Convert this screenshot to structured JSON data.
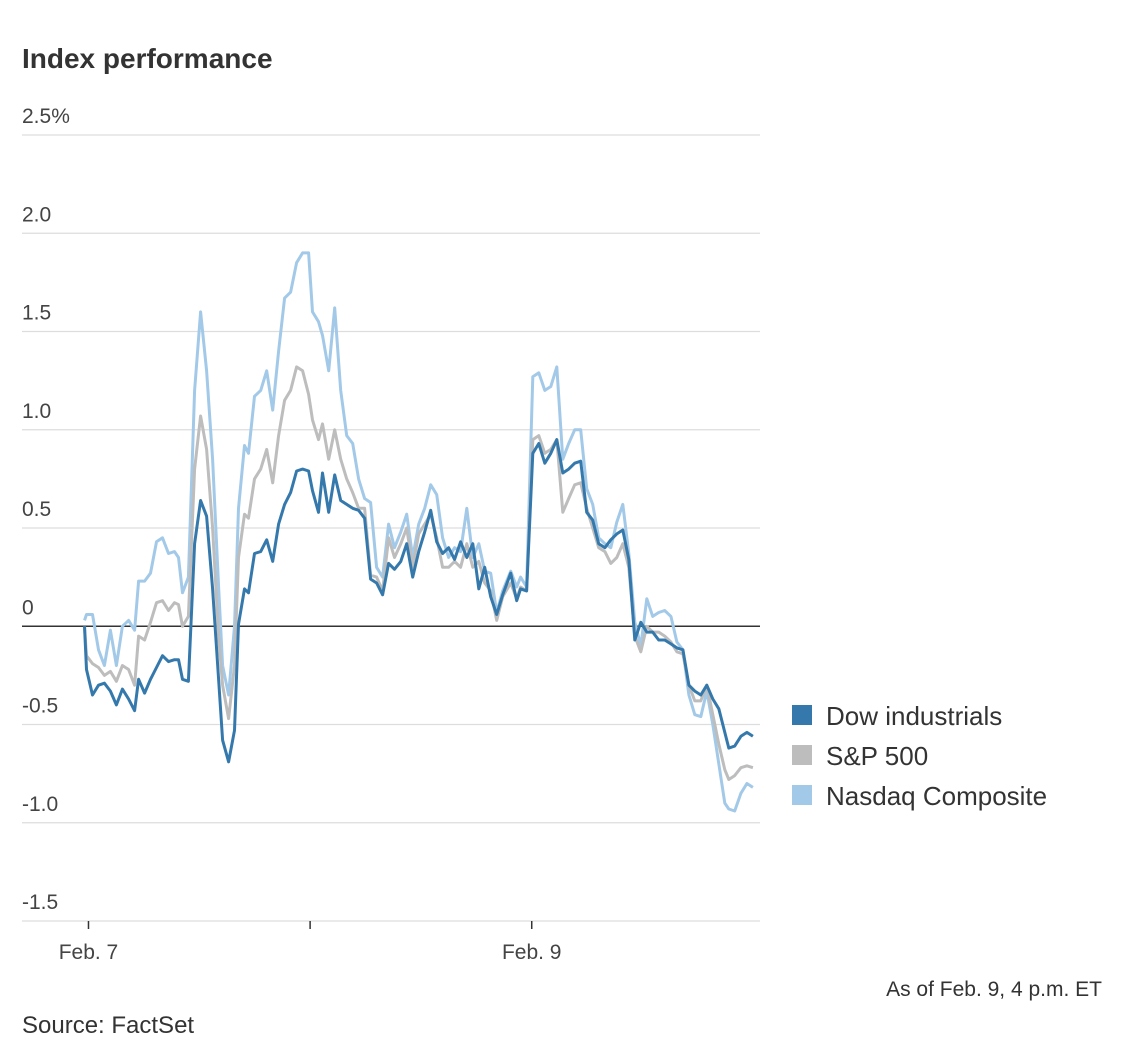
{
  "chart_data": {
    "type": "line",
    "title": "Index performance",
    "note": "As of Feb. 9, 4 p.m. ET",
    "source": "Source: FactSet",
    "x": [
      -0.018,
      -0.009,
      0.018,
      0.045,
      0.072,
      0.099,
      0.126,
      0.153,
      0.181,
      0.208,
      0.226,
      0.253,
      0.28,
      0.307,
      0.334,
      0.361,
      0.388,
      0.406,
      0.424,
      0.451,
      0.479,
      0.506,
      0.533,
      0.56,
      0.587,
      0.605,
      0.632,
      0.659,
      0.677,
      0.704,
      0.722,
      0.749,
      0.777,
      0.804,
      0.831,
      0.858,
      0.885,
      0.912,
      0.939,
      0.966,
      0.993,
      1.011,
      1.038,
      1.056,
      1.084,
      1.111,
      1.138,
      1.165,
      1.192,
      1.219,
      1.246,
      1.273,
      1.3,
      1.327,
      1.354,
      1.381,
      1.409,
      1.436,
      1.463,
      1.49,
      1.517,
      1.544,
      1.571,
      1.598,
      1.625,
      1.652,
      1.679,
      1.707,
      1.734,
      1.761,
      1.788,
      1.815,
      1.842,
      1.869,
      1.905,
      1.932,
      1.95,
      1.977,
      2.005,
      2.032,
      2.059,
      2.086,
      2.113,
      2.14,
      2.167,
      2.194,
      2.221,
      2.248,
      2.275,
      2.302,
      2.33,
      2.357,
      2.384,
      2.411,
      2.438,
      2.465,
      2.492,
      2.519,
      2.546,
      2.573,
      2.6,
      2.628,
      2.655,
      2.682,
      2.709,
      2.736,
      2.763,
      2.79,
      2.817,
      2.844,
      2.871,
      2.889,
      2.916,
      2.944,
      2.971,
      2.998
    ],
    "series": [
      {
        "name": "Dow industrials",
        "color": "#3579ac",
        "values": [
          0,
          -0.22,
          -0.35,
          -0.3,
          -0.29,
          -0.33,
          -0.4,
          -0.32,
          -0.37,
          -0.43,
          -0.27,
          -0.34,
          -0.27,
          -0.21,
          -0.15,
          -0.18,
          -0.17,
          -0.17,
          -0.27,
          -0.28,
          0.42,
          0.64,
          0.56,
          0.19,
          -0.27,
          -0.58,
          -0.69,
          -0.53,
          0.01,
          0.19,
          0.17,
          0.37,
          0.38,
          0.44,
          0.33,
          0.52,
          0.62,
          0.68,
          0.79,
          0.8,
          0.79,
          0.69,
          0.58,
          0.78,
          0.58,
          0.77,
          0.64,
          0.62,
          0.6,
          0.59,
          0.55,
          0.24,
          0.22,
          0.16,
          0.32,
          0.29,
          0.33,
          0.42,
          0.25,
          0.38,
          0.48,
          0.59,
          0.43,
          0.37,
          0.4,
          0.34,
          0.43,
          0.35,
          0.42,
          0.19,
          0.3,
          0.15,
          0.06,
          0.16,
          0.27,
          0.13,
          0.19,
          0.18,
          0.88,
          0.93,
          0.83,
          0.88,
          0.95,
          0.78,
          0.8,
          0.83,
          0.84,
          0.58,
          0.54,
          0.42,
          0.4,
          0.44,
          0.47,
          0.49,
          0.34,
          -0.07,
          0.02,
          -0.03,
          -0.03,
          -0.07,
          -0.07,
          -0.09,
          -0.11,
          -0.12,
          -0.3,
          -0.33,
          -0.35,
          -0.3,
          -0.37,
          -0.42,
          -0.54,
          -0.62,
          -0.61,
          -0.56,
          -0.54,
          -0.56
        ]
      },
      {
        "name": "S&P 500",
        "color": "#bdbdbd",
        "values": [
          0,
          -0.15,
          -0.19,
          -0.21,
          -0.25,
          -0.23,
          -0.28,
          -0.2,
          -0.22,
          -0.3,
          -0.05,
          -0.07,
          0.02,
          0.12,
          0.13,
          0.08,
          0.12,
          0.11,
          0.0,
          0.05,
          0.8,
          1.07,
          0.9,
          0.5,
          -0.05,
          -0.3,
          -0.47,
          -0.2,
          0.35,
          0.57,
          0.55,
          0.75,
          0.8,
          0.9,
          0.73,
          0.97,
          1.15,
          1.2,
          1.32,
          1.3,
          1.18,
          1.05,
          0.95,
          1.03,
          0.85,
          1.0,
          0.85,
          0.75,
          0.68,
          0.6,
          0.6,
          0.26,
          0.25,
          0.18,
          0.45,
          0.35,
          0.42,
          0.5,
          0.3,
          0.47,
          0.52,
          0.57,
          0.45,
          0.3,
          0.3,
          0.33,
          0.3,
          0.42,
          0.3,
          0.33,
          0.22,
          0.18,
          0.03,
          0.15,
          0.22,
          0.14,
          0.2,
          0.18,
          0.95,
          0.97,
          0.88,
          0.9,
          0.95,
          0.58,
          0.65,
          0.72,
          0.73,
          0.6,
          0.5,
          0.4,
          0.38,
          0.32,
          0.35,
          0.42,
          0.3,
          -0.05,
          -0.13,
          0.0,
          -0.03,
          -0.03,
          -0.05,
          -0.08,
          -0.13,
          -0.14,
          -0.3,
          -0.38,
          -0.38,
          -0.3,
          -0.45,
          -0.6,
          -0.73,
          -0.78,
          -0.76,
          -0.72,
          -0.71,
          -0.72
        ]
      },
      {
        "name": "Nasdaq Composite",
        "color": "#a3c9e8",
        "values": [
          0.03,
          0.06,
          0.06,
          -0.12,
          -0.2,
          -0.02,
          -0.2,
          0.0,
          0.03,
          -0.02,
          0.23,
          0.23,
          0.27,
          0.43,
          0.45,
          0.37,
          0.38,
          0.35,
          0.17,
          0.25,
          1.2,
          1.6,
          1.3,
          0.85,
          0.2,
          -0.2,
          -0.35,
          0.0,
          0.6,
          0.92,
          0.88,
          1.17,
          1.2,
          1.3,
          1.1,
          1.4,
          1.67,
          1.7,
          1.85,
          1.9,
          1.9,
          1.6,
          1.55,
          1.48,
          1.3,
          1.62,
          1.2,
          0.97,
          0.93,
          0.75,
          0.65,
          0.63,
          0.3,
          0.25,
          0.52,
          0.4,
          0.48,
          0.57,
          0.35,
          0.52,
          0.6,
          0.72,
          0.67,
          0.45,
          0.35,
          0.4,
          0.38,
          0.6,
          0.35,
          0.42,
          0.28,
          0.27,
          0.07,
          0.18,
          0.28,
          0.2,
          0.25,
          0.2,
          1.27,
          1.29,
          1.2,
          1.22,
          1.32,
          0.85,
          0.93,
          1.0,
          1.0,
          0.7,
          0.62,
          0.45,
          0.42,
          0.4,
          0.53,
          0.62,
          0.37,
          0.02,
          -0.1,
          0.14,
          0.05,
          0.07,
          0.08,
          0.05,
          -0.08,
          -0.12,
          -0.35,
          -0.45,
          -0.46,
          -0.33,
          -0.5,
          -0.7,
          -0.9,
          -0.93,
          -0.94,
          -0.85,
          -0.8,
          -0.82
        ]
      }
    ],
    "xlim": [
      -0.3,
      3.03
    ],
    "xticks": [
      {
        "value": 0,
        "label": "Feb. 7"
      },
      {
        "value": 1,
        "label": null
      },
      {
        "value": 2,
        "label": "Feb. 9"
      }
    ],
    "ylim": [
      -1.5,
      2.5
    ],
    "yticks": [
      {
        "value": 2.5,
        "label": "2.5%"
      },
      {
        "value": 2,
        "label": "2.0"
      },
      1.5,
      {
        "value": 1,
        "label": "1.0"
      },
      0.5,
      0,
      -0.5,
      {
        "value": -1,
        "label": "-1.0"
      },
      -1.5
    ],
    "grid": true,
    "legend": "right"
  }
}
